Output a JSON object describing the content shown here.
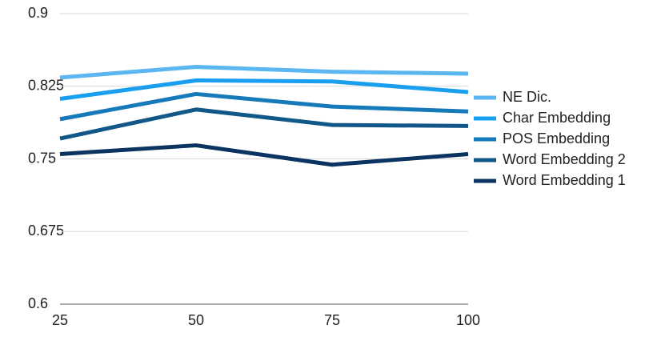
{
  "chart_data": {
    "type": "line",
    "x": [
      25,
      50,
      75,
      100
    ],
    "xlim": [
      25,
      100
    ],
    "xticks": [
      25,
      50,
      75,
      100
    ],
    "ylim": [
      0.6,
      0.9
    ],
    "yticks": [
      0.6,
      0.675,
      0.75,
      0.825,
      0.9
    ],
    "grid": true,
    "legend": "right",
    "series": [
      {
        "name": "NE Dic.",
        "color": "#5cb6f2",
        "values": [
          0.834,
          0.845,
          0.84,
          0.838
        ]
      },
      {
        "name": "Char Embedding",
        "color": "#1a9ff0",
        "values": [
          0.812,
          0.831,
          0.83,
          0.819
        ]
      },
      {
        "name": "POS Embedding",
        "color": "#1679ba",
        "values": [
          0.791,
          0.817,
          0.804,
          0.799
        ]
      },
      {
        "name": "Word Embedding 2",
        "color": "#115787",
        "values": [
          0.771,
          0.801,
          0.785,
          0.784
        ]
      },
      {
        "name": "Word Embedding 1",
        "color": "#0b3461",
        "values": [
          0.755,
          0.764,
          0.744,
          0.755
        ]
      }
    ]
  }
}
